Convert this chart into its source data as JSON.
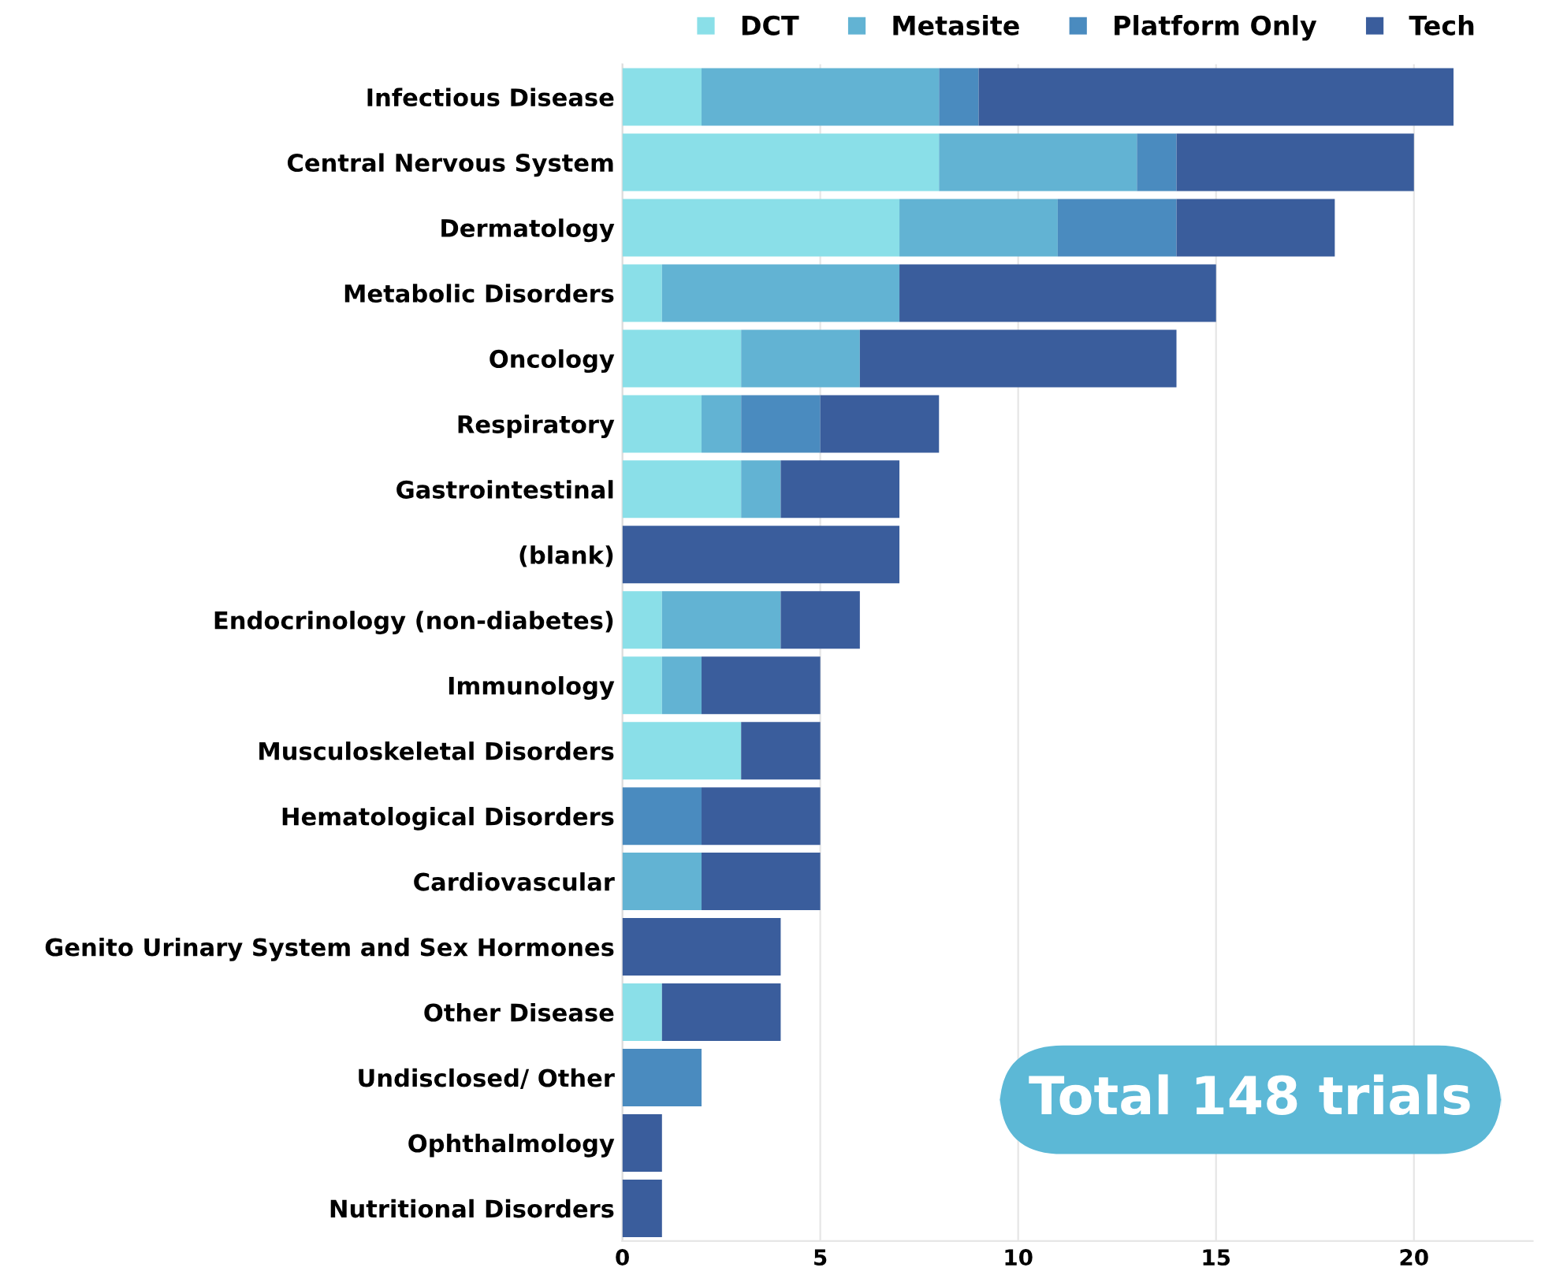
{
  "chart_data": {
    "type": "bar",
    "orientation": "horizontal",
    "stacked": true,
    "categories": [
      "Infectious Disease",
      "Central Nervous System",
      "Dermatology",
      "Metabolic Disorders",
      "Oncology",
      "Respiratory",
      "Gastrointestinal",
      "(blank)",
      "Endocrinology (non-diabetes)",
      "Immunology",
      "Musculoskeletal Disorders",
      "Hematological Disorders",
      "Cardiovascular",
      "Genito Urinary System and Sex Hormones",
      "Other Disease",
      "Undisclosed/ Other",
      "Ophthalmology",
      "Nutritional Disorders"
    ],
    "series": [
      {
        "name": "DCT",
        "color": "#8adfe8",
        "values": [
          2,
          8,
          7,
          1,
          3,
          2,
          3,
          0,
          1,
          1,
          3,
          0,
          0,
          0,
          1,
          0,
          0,
          0
        ]
      },
      {
        "name": "Metasite",
        "color": "#62b3d3",
        "values": [
          6,
          5,
          4,
          6,
          3,
          1,
          1,
          0,
          3,
          1,
          0,
          0,
          2,
          0,
          0,
          0,
          0,
          0
        ]
      },
      {
        "name": "Platform Only",
        "color": "#4a8bbf",
        "values": [
          1,
          1,
          3,
          0,
          0,
          2,
          0,
          0,
          0,
          0,
          0,
          2,
          0,
          0,
          0,
          2,
          0,
          0
        ]
      },
      {
        "name": "Tech",
        "color": "#3a5d9c",
        "values": [
          12,
          6,
          4,
          8,
          8,
          3,
          3,
          7,
          2,
          3,
          2,
          3,
          3,
          4,
          3,
          0,
          1,
          1
        ]
      }
    ],
    "xlim": [
      0,
      23
    ],
    "xticks": [
      0,
      5,
      10,
      15,
      20
    ],
    "grid": "x",
    "legend": "top",
    "marker": "square",
    "annotations": [
      "Total 148 trials"
    ]
  }
}
